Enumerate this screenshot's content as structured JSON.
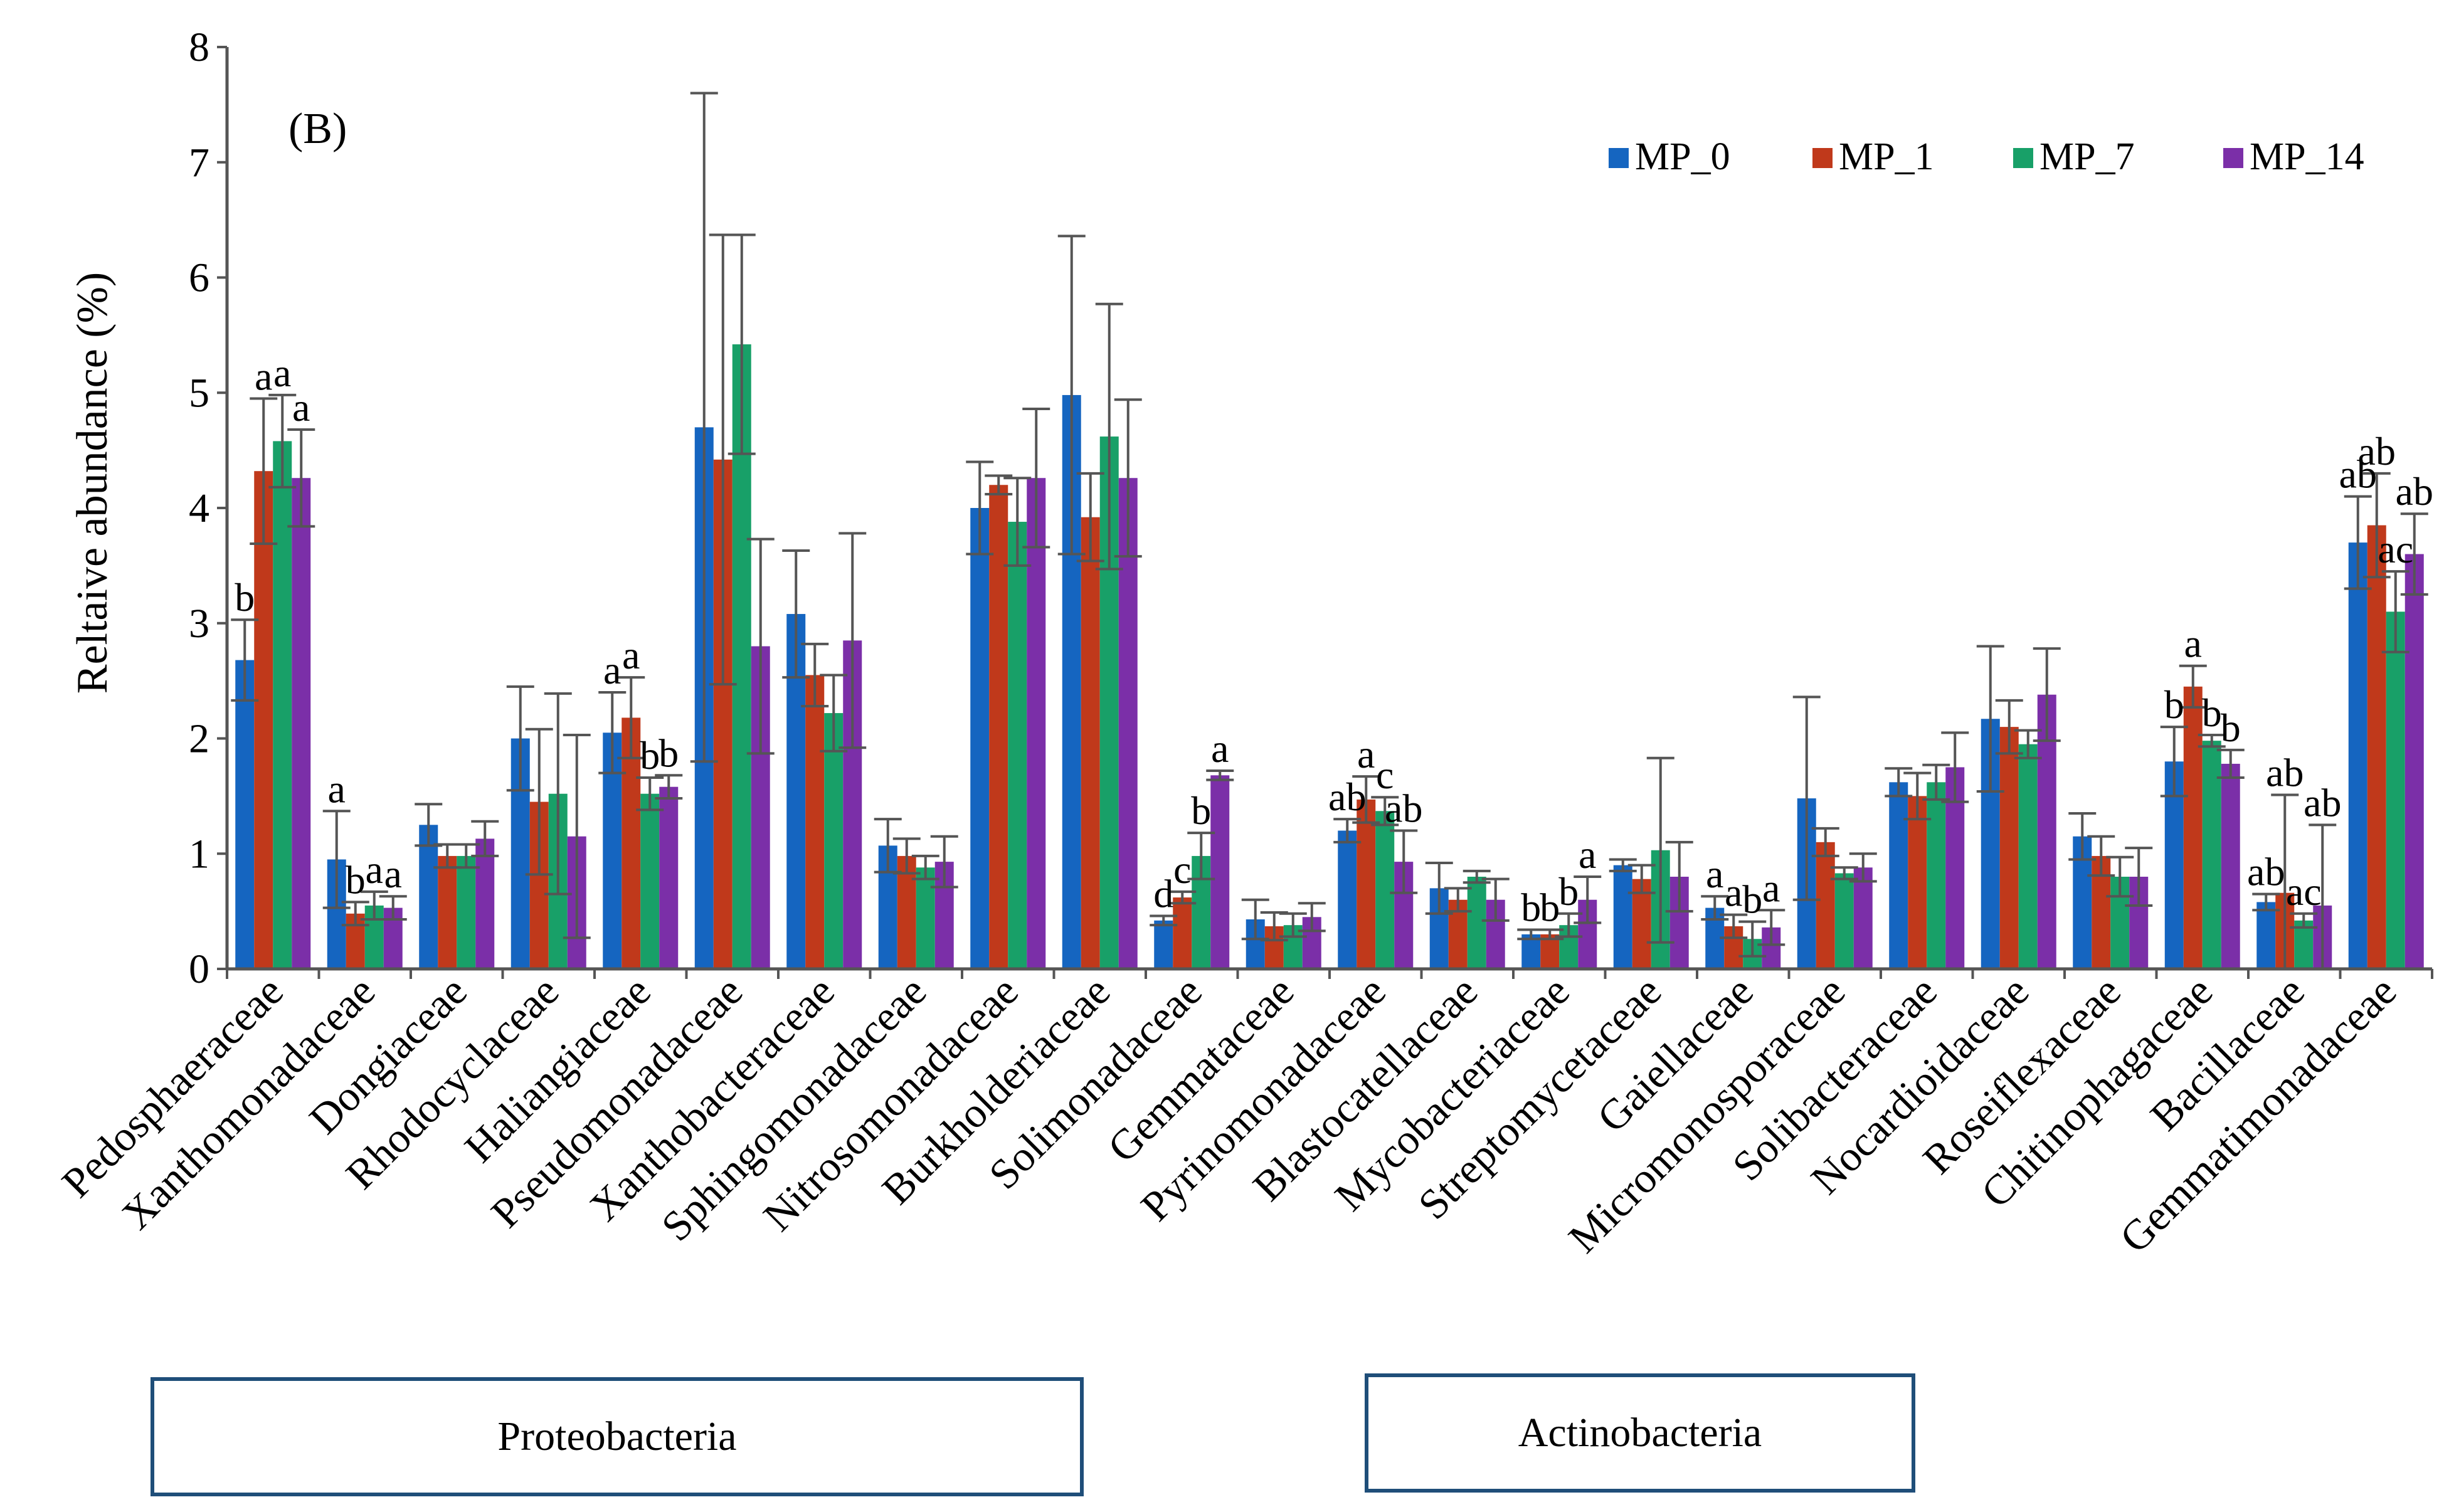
{
  "chart_data": {
    "type": "bar",
    "panel_label": "(B)",
    "ylabel": "Reltaive abundance (%)",
    "xlabel": "",
    "ylim": [
      0,
      8
    ],
    "yticks": [
      "0",
      "1",
      "2",
      "3",
      "4",
      "5",
      "6",
      "7",
      "8"
    ],
    "legend_position": "top-right",
    "categories": [
      "Pedosphaeraceae",
      "Xanthomonadaceae",
      "Dongiaceae",
      "Rhodocyclaceae",
      "Haliangiaceae",
      "Pseudomonadaceae",
      "Xanthobacteraceae",
      "Sphingomonadaceae",
      "Nitrosomonadaceae",
      "Burkholderiaceae",
      "Solimonadaceae",
      "Gemmataceae",
      "Pyrinomonadaceae",
      "Blastocatellaceae",
      "Mycobacteriaceae",
      "Streptomycetaceae",
      "Gaiellaceae",
      "Micromonosporaceae",
      "Solibacteraceae",
      "Nocardioidaceae",
      "Roseiflexaceae",
      "Chitinophagaceae",
      "Bacillaceae",
      "Gemmatimonadaceae"
    ],
    "series": [
      {
        "name": "MP_0",
        "color": "#1565c0",
        "values": [
          2.68,
          0.95,
          1.25,
          2.0,
          2.05,
          4.7,
          3.08,
          1.07,
          4.0,
          4.98,
          0.42,
          0.43,
          1.2,
          0.7,
          0.3,
          0.9,
          0.53,
          1.48,
          1.62,
          2.17,
          1.15,
          1.8,
          0.58,
          3.7
        ],
        "errors": [
          0.35,
          0.42,
          0.18,
          0.45,
          0.35,
          2.9,
          0.55,
          0.23,
          0.4,
          1.38,
          0.04,
          0.17,
          0.1,
          0.22,
          0.04,
          0.05,
          0.1,
          0.88,
          0.12,
          0.63,
          0.2,
          0.3,
          0.07,
          0.4
        ]
      },
      {
        "name": "MP_1",
        "color": "#c0391b",
        "values": [
          4.32,
          0.48,
          0.98,
          1.45,
          2.18,
          4.42,
          2.55,
          0.98,
          4.2,
          3.92,
          0.62,
          0.37,
          1.47,
          0.6,
          0.3,
          0.78,
          0.37,
          1.1,
          1.5,
          2.1,
          0.98,
          2.45,
          0.66,
          3.85
        ],
        "errors": [
          0.63,
          0.1,
          0.1,
          0.63,
          0.35,
          1.95,
          0.27,
          0.15,
          0.08,
          0.38,
          0.05,
          0.12,
          0.2,
          0.1,
          0.04,
          0.12,
          0.1,
          0.12,
          0.2,
          0.23,
          0.17,
          0.18,
          0.85,
          0.45
        ]
      },
      {
        "name": "MP_7",
        "color": "#18a068",
        "values": [
          4.58,
          0.55,
          0.98,
          1.52,
          1.52,
          5.42,
          2.22,
          0.88,
          3.88,
          4.62,
          0.98,
          0.38,
          1.37,
          0.8,
          0.38,
          1.03,
          0.26,
          0.83,
          1.62,
          1.95,
          0.8,
          1.98,
          0.42,
          3.1
        ],
        "errors": [
          0.4,
          0.12,
          0.1,
          0.87,
          0.14,
          0.95,
          0.33,
          0.1,
          0.38,
          1.15,
          0.2,
          0.1,
          0.12,
          0.05,
          0.1,
          0.8,
          0.15,
          0.05,
          0.15,
          0.12,
          0.17,
          0.05,
          0.06,
          0.35
        ]
      },
      {
        "name": "MP_14",
        "color": "#7b2fa8",
        "values": [
          4.26,
          0.53,
          1.13,
          1.15,
          1.58,
          2.8,
          2.85,
          0.93,
          4.26,
          4.26,
          1.68,
          0.45,
          0.93,
          0.6,
          0.6,
          0.8,
          0.36,
          0.88,
          1.75,
          2.38,
          0.8,
          1.78,
          0.55,
          3.6
        ],
        "errors": [
          0.42,
          0.1,
          0.15,
          0.88,
          0.1,
          0.93,
          0.93,
          0.22,
          0.6,
          0.68,
          0.04,
          0.12,
          0.27,
          0.18,
          0.2,
          0.3,
          0.15,
          0.12,
          0.3,
          0.4,
          0.25,
          0.12,
          0.7,
          0.35
        ]
      }
    ],
    "annotations": [
      {
        "category": 0,
        "series": 0,
        "text": "b"
      },
      {
        "category": 0,
        "series": 1,
        "text": "a"
      },
      {
        "category": 0,
        "series": 2,
        "text": "a"
      },
      {
        "category": 0,
        "series": 3,
        "text": "a"
      },
      {
        "category": 1,
        "series": 0,
        "text": "a"
      },
      {
        "category": 1,
        "series": 1,
        "text": "b"
      },
      {
        "category": 1,
        "series": 2,
        "text": "a"
      },
      {
        "category": 1,
        "series": 3,
        "text": "a"
      },
      {
        "category": 4,
        "series": 0,
        "text": "a"
      },
      {
        "category": 4,
        "series": 1,
        "text": "a"
      },
      {
        "category": 4,
        "series": 2,
        "text": "b"
      },
      {
        "category": 4,
        "series": 3,
        "text": "b"
      },
      {
        "category": 10,
        "series": 0,
        "text": "d"
      },
      {
        "category": 10,
        "series": 1,
        "text": "c"
      },
      {
        "category": 10,
        "series": 2,
        "text": "b"
      },
      {
        "category": 10,
        "series": 3,
        "text": "a"
      },
      {
        "category": 12,
        "series": 0,
        "text": "ab"
      },
      {
        "category": 12,
        "series": 1,
        "text": "a"
      },
      {
        "category": 12,
        "series": 2,
        "text": "c"
      },
      {
        "category": 12,
        "series": 3,
        "text": "ab"
      },
      {
        "category": 14,
        "series": 0,
        "text": "b"
      },
      {
        "category": 14,
        "series": 1,
        "text": "b"
      },
      {
        "category": 14,
        "series": 2,
        "text": "b"
      },
      {
        "category": 14,
        "series": 3,
        "text": "a"
      },
      {
        "category": 16,
        "series": 0,
        "text": "a"
      },
      {
        "category": 16,
        "series": 1,
        "text": "a"
      },
      {
        "category": 16,
        "series": 2,
        "text": "b"
      },
      {
        "category": 16,
        "series": 3,
        "text": "a"
      },
      {
        "category": 21,
        "series": 0,
        "text": "b"
      },
      {
        "category": 21,
        "series": 1,
        "text": "a"
      },
      {
        "category": 21,
        "series": 2,
        "text": "b"
      },
      {
        "category": 21,
        "series": 3,
        "text": "b"
      },
      {
        "category": 22,
        "series": 0,
        "text": "ab"
      },
      {
        "category": 22,
        "series": 1,
        "text": "ab"
      },
      {
        "category": 22,
        "series": 2,
        "text": "ac"
      },
      {
        "category": 22,
        "series": 3,
        "text": "ab"
      },
      {
        "category": 23,
        "series": 0,
        "text": "ab"
      },
      {
        "category": 23,
        "series": 1,
        "text": "ab"
      },
      {
        "category": 23,
        "series": 2,
        "text": "ac"
      },
      {
        "category": 23,
        "series": 3,
        "text": "ab"
      }
    ],
    "groups": [
      {
        "label": "Proteobacteria"
      },
      {
        "label": "Actinobacteria"
      }
    ]
  }
}
